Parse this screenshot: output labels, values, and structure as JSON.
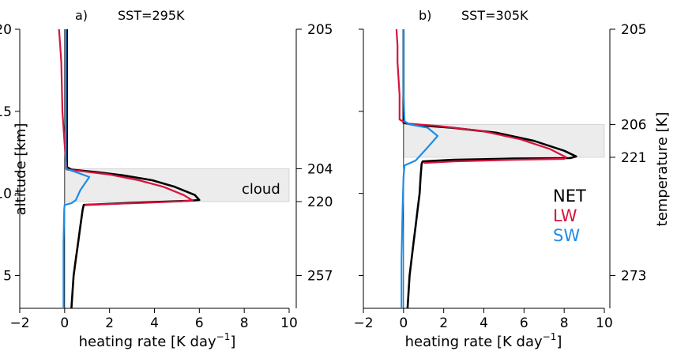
{
  "colors": {
    "net": "#000000",
    "lw": "#d7143c",
    "sw": "#1e8ce6",
    "cloud_fill": "#ececec",
    "cloud_edge": "#cfcfcf"
  },
  "xlabel_main": "heating rate [K day",
  "xlabel_sup": "−1",
  "xlabel_end": "]",
  "ylabel_left": "altitude [km]",
  "ylabel_right": "temperature [K]",
  "cloud_label": "cloud",
  "legend": [
    "NET",
    "LW",
    "SW"
  ],
  "chart_data": [
    {
      "type": "line",
      "label": "a)",
      "title": "SST=295K",
      "xlim": [
        -2,
        10
      ],
      "ylim": [
        3,
        20
      ],
      "xticks": [
        -2,
        0,
        2,
        4,
        6,
        8,
        10
      ],
      "yticks": [
        5,
        10,
        15,
        20
      ],
      "right_ticks": [
        {
          "alt": 20,
          "label": "205"
        },
        {
          "alt": 11.5,
          "label": "204"
        },
        {
          "alt": 9.5,
          "label": "220"
        },
        {
          "alt": 5,
          "label": "257"
        }
      ],
      "cloud": {
        "x": [
          0,
          10
        ],
        "y": [
          9.5,
          11.5
        ]
      },
      "series": [
        {
          "name": "NET",
          "points": [
            [
              0.3,
              3
            ],
            [
              0.35,
              4
            ],
            [
              0.4,
              5
            ],
            [
              0.5,
              6
            ],
            [
              0.6,
              7
            ],
            [
              0.7,
              8
            ],
            [
              0.8,
              9
            ],
            [
              0.85,
              9.3
            ],
            [
              1.2,
              9.32
            ],
            [
              3.5,
              9.45
            ],
            [
              5.5,
              9.55
            ],
            [
              6.0,
              9.6
            ],
            [
              5.8,
              9.9
            ],
            [
              4.9,
              10.4
            ],
            [
              3.9,
              10.8
            ],
            [
              2.6,
              11.1
            ],
            [
              1.4,
              11.3
            ],
            [
              0.3,
              11.45
            ],
            [
              0.1,
              11.6
            ],
            [
              0.1,
              13
            ],
            [
              0.1,
              16
            ],
            [
              0.1,
              18
            ],
            [
              0.1,
              20
            ]
          ]
        },
        {
          "name": "LW",
          "points": [
            [
              0.9,
              9.3
            ],
            [
              1.2,
              9.32
            ],
            [
              3.5,
              9.42
            ],
            [
              5.2,
              9.52
            ],
            [
              5.7,
              9.57
            ],
            [
              5.3,
              9.9
            ],
            [
              4.4,
              10.4
            ],
            [
              3.3,
              10.8
            ],
            [
              2.0,
              11.15
            ],
            [
              0.8,
              11.35
            ],
            [
              0.1,
              11.45
            ],
            [
              0.05,
              12
            ],
            [
              0.0,
              13
            ],
            [
              -0.1,
              15
            ],
            [
              -0.15,
              18
            ],
            [
              -0.2,
              19
            ],
            [
              -0.25,
              20
            ]
          ]
        },
        {
          "name": "SW",
          "points": [
            [
              -0.05,
              3
            ],
            [
              -0.05,
              5
            ],
            [
              -0.05,
              7
            ],
            [
              -0.02,
              9.0
            ],
            [
              0.0,
              9.3
            ],
            [
              0.3,
              9.4
            ],
            [
              0.5,
              9.6
            ],
            [
              0.7,
              10.2
            ],
            [
              1.1,
              11.0
            ],
            [
              0.5,
              11.3
            ],
            [
              0.05,
              11.5
            ],
            [
              0.05,
              12
            ],
            [
              0.05,
              14
            ],
            [
              0.05,
              17
            ],
            [
              0.05,
              20
            ]
          ]
        }
      ]
    },
    {
      "type": "line",
      "label": "b)",
      "title": "SST=305K",
      "xlim": [
        -2,
        10
      ],
      "ylim": [
        3,
        20
      ],
      "xticks": [
        -2,
        0,
        2,
        4,
        6,
        8,
        10
      ],
      "yticks": [
        5,
        10,
        15,
        20
      ],
      "right_ticks": [
        {
          "alt": 20,
          "label": "205"
        },
        {
          "alt": 14.2,
          "label": "206"
        },
        {
          "alt": 12.2,
          "label": "221"
        },
        {
          "alt": 5,
          "label": "273"
        }
      ],
      "cloud": {
        "x": [
          0,
          10
        ],
        "y": [
          12.2,
          14.2
        ]
      },
      "series": [
        {
          "name": "NET",
          "points": [
            [
              0.2,
              3
            ],
            [
              0.25,
              4
            ],
            [
              0.3,
              5
            ],
            [
              0.4,
              6
            ],
            [
              0.5,
              7
            ],
            [
              0.6,
              8
            ],
            [
              0.7,
              9
            ],
            [
              0.8,
              10
            ],
            [
              0.85,
              11
            ],
            [
              0.9,
              11.8
            ],
            [
              0.95,
              11.95
            ],
            [
              2.5,
              12.05
            ],
            [
              5.5,
              12.12
            ],
            [
              8.3,
              12.15
            ],
            [
              8.6,
              12.25
            ],
            [
              8.0,
              12.6
            ],
            [
              6.5,
              13.2
            ],
            [
              4.6,
              13.7
            ],
            [
              2.4,
              14.0
            ],
            [
              0.5,
              14.18
            ],
            [
              0.0,
              14.3
            ],
            [
              0.0,
              16
            ],
            [
              0.0,
              18
            ],
            [
              0.0,
              20
            ]
          ]
        },
        {
          "name": "LW",
          "points": [
            [
              1.0,
              11.85
            ],
            [
              2.5,
              11.95
            ],
            [
              5.5,
              12.05
            ],
            [
              8.0,
              12.1
            ],
            [
              8.1,
              12.2
            ],
            [
              7.3,
              12.7
            ],
            [
              5.8,
              13.3
            ],
            [
              3.9,
              13.8
            ],
            [
              1.8,
              14.1
            ],
            [
              0.2,
              14.25
            ],
            [
              -0.2,
              14.5
            ],
            [
              -0.2,
              16
            ],
            [
              -0.3,
              18
            ],
            [
              -0.3,
              19
            ],
            [
              -0.35,
              20
            ]
          ]
        },
        {
          "name": "SW",
          "points": [
            [
              -0.1,
              3
            ],
            [
              -0.1,
              6
            ],
            [
              -0.05,
              9
            ],
            [
              0.0,
              11.0
            ],
            [
              0.05,
              11.7
            ],
            [
              0.6,
              12.0
            ],
            [
              1.2,
              12.8
            ],
            [
              1.7,
              13.5
            ],
            [
              1.2,
              14.0
            ],
            [
              0.3,
              14.2
            ],
            [
              0.05,
              14.4
            ],
            [
              0.0,
              16
            ],
            [
              0.0,
              20
            ]
          ]
        }
      ]
    }
  ]
}
